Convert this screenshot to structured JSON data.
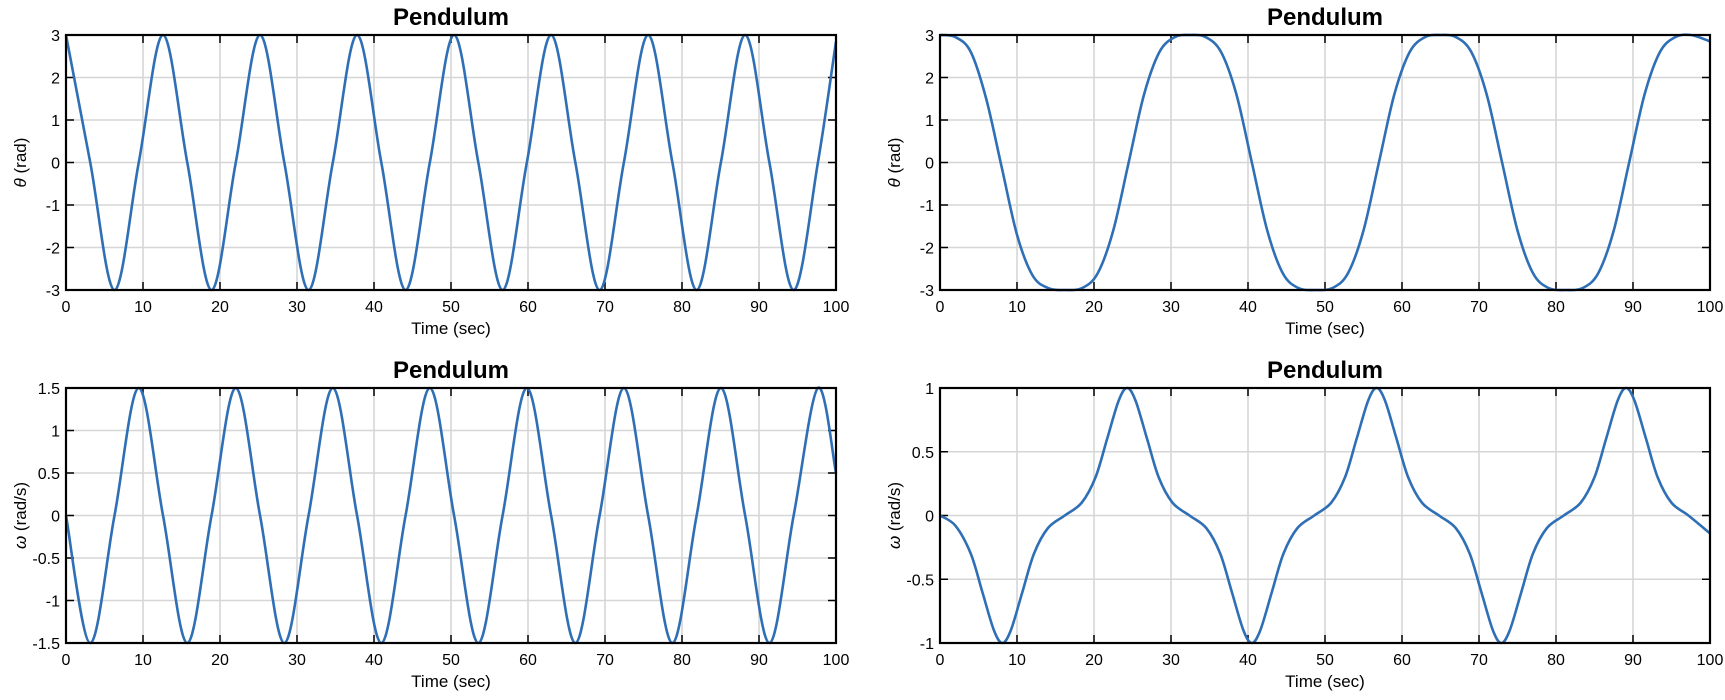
{
  "colors": {
    "series": "#2f6fb5",
    "grid": "#d6d6d6",
    "axis": "#000000"
  },
  "chart_data": [
    {
      "type": "line",
      "title": "Pendulum",
      "xlabel": "Time (sec)",
      "ylabel_symbol": "θ",
      "ylabel_unit": " (rad)",
      "xlim": [
        0,
        100
      ],
      "ylim": [
        -3,
        3
      ],
      "xticks": [
        0,
        10,
        20,
        30,
        40,
        50,
        60,
        70,
        80,
        90,
        100
      ],
      "yticks": [
        3,
        2,
        1,
        0,
        -1,
        -2,
        -3
      ],
      "yticklabels": [
        "3",
        "2",
        "1",
        "0",
        "-1",
        "-2",
        "-3"
      ],
      "grid": true,
      "series": [
        {
          "x": [
            0,
            3.15,
            6.3,
            9.45,
            12.6,
            15.75,
            18.9,
            22.05,
            25.2,
            28.35,
            31.5,
            34.65,
            37.8,
            40.95,
            44.1,
            47.25,
            50.4,
            53.55,
            56.7,
            59.85,
            63.0,
            66.15,
            69.3,
            72.45,
            75.6,
            78.75,
            81.9,
            85.05,
            88.2,
            91.35,
            94.5,
            97.65,
            100
          ],
          "y": [
            3,
            0,
            -3,
            0,
            3,
            0,
            -3,
            0,
            3,
            0,
            -3,
            0,
            3,
            0,
            -3,
            0,
            3,
            0,
            -3,
            0,
            3,
            0,
            -3,
            0,
            3,
            0,
            -3,
            0,
            3,
            0,
            -3,
            0,
            2.85
          ]
        }
      ]
    },
    {
      "type": "line",
      "title": "Pendulum",
      "xlabel": "Time (sec)",
      "ylabel_symbol": "θ",
      "ylabel_unit": " (rad)",
      "xlim": [
        0,
        100
      ],
      "ylim": [
        -3,
        3
      ],
      "xticks": [
        0,
        10,
        20,
        30,
        40,
        50,
        60,
        70,
        80,
        90,
        100
      ],
      "yticks": [
        3,
        2,
        1,
        0,
        -1,
        -2,
        -3
      ],
      "yticklabels": [
        "3",
        "2",
        "1",
        "0",
        "-1",
        "-2",
        "-3"
      ],
      "grid": true,
      "series": [
        {
          "x": [
            0,
            2,
            4,
            6,
            8,
            10,
            12,
            14,
            16.25,
            18.5,
            20.5,
            22.5,
            24.5,
            26.5,
            28.5,
            30.5,
            32.5,
            34.5,
            36.5,
            38.5,
            40.5,
            42.5,
            44.5,
            46.5,
            48.75,
            51,
            53,
            55,
            57,
            59,
            61,
            63,
            65,
            67,
            69,
            71,
            73,
            75,
            77,
            79,
            81.25,
            83.5,
            85.5,
            87.5,
            89.5,
            91.5,
            93.5,
            95.5,
            97.5,
            100
          ],
          "y": [
            3,
            2.95,
            2.6,
            1.5,
            -0.1,
            -1.7,
            -2.65,
            -2.95,
            -3,
            -2.95,
            -2.6,
            -1.6,
            0,
            1.6,
            2.6,
            2.95,
            3,
            2.95,
            2.6,
            1.6,
            0,
            -1.6,
            -2.6,
            -2.95,
            -3,
            -2.95,
            -2.6,
            -1.6,
            0,
            1.6,
            2.6,
            2.95,
            3,
            2.95,
            2.6,
            1.6,
            0,
            -1.6,
            -2.6,
            -2.95,
            -3,
            -2.95,
            -2.6,
            -1.6,
            0,
            1.6,
            2.6,
            2.95,
            3,
            2.85
          ]
        }
      ]
    },
    {
      "type": "line",
      "title": "Pendulum",
      "xlabel": "Time (sec)",
      "ylabel_symbol": "ω",
      "ylabel_unit": " (rad/s)",
      "xlim": [
        0,
        100
      ],
      "ylim": [
        -1.5,
        1.5
      ],
      "xticks": [
        0,
        10,
        20,
        30,
        40,
        50,
        60,
        70,
        80,
        90,
        100
      ],
      "yticks": [
        1.5,
        1,
        0.5,
        0,
        -0.5,
        -1,
        -1.5
      ],
      "yticklabels": [
        "1.5",
        "1",
        "0.5",
        "0",
        "-0.5",
        "-1",
        "-1.5"
      ],
      "grid": true,
      "series": [
        {
          "x": [
            0,
            3.15,
            6.3,
            9.45,
            12.6,
            15.75,
            18.9,
            22.05,
            25.2,
            28.35,
            31.5,
            34.65,
            37.8,
            40.95,
            44.1,
            47.25,
            50.4,
            53.55,
            56.7,
            59.85,
            63.0,
            66.15,
            69.3,
            72.45,
            75.6,
            78.75,
            81.9,
            85.05,
            88.2,
            91.35,
            94.5,
            97.65,
            100
          ],
          "y": [
            0,
            -1.5,
            0,
            1.5,
            0,
            -1.5,
            0,
            1.5,
            0,
            -1.5,
            0,
            1.5,
            0,
            -1.5,
            0,
            1.5,
            0,
            -1.5,
            0,
            1.5,
            0,
            -1.5,
            0,
            1.5,
            0,
            -1.5,
            0,
            1.5,
            0,
            -1.5,
            0,
            1.5,
            0.5
          ]
        }
      ]
    },
    {
      "type": "line",
      "title": "Pendulum",
      "xlabel": "Time (sec)",
      "ylabel_symbol": "ω",
      "ylabel_unit": " (rad/s)",
      "xlim": [
        0,
        100
      ],
      "ylim": [
        -1,
        1
      ],
      "xticks": [
        0,
        10,
        20,
        30,
        40,
        50,
        60,
        70,
        80,
        90,
        100
      ],
      "yticks": [
        1,
        0.5,
        0,
        -0.5,
        -1
      ],
      "yticklabels": [
        "1",
        "0.5",
        "0",
        "-0.5",
        "-1"
      ],
      "grid": true,
      "series": [
        {
          "x": [
            0,
            2,
            4,
            5.5,
            7,
            8.1,
            9.2,
            10.7,
            12.2,
            14,
            16.2,
            18.4,
            20.2,
            21.7,
            23.2,
            24.3,
            25.4,
            26.9,
            28.4,
            30.2,
            32.4,
            34.6,
            36.4,
            37.9,
            39.4,
            40.5,
            41.6,
            43.1,
            44.6,
            46.4,
            48.6,
            50.8,
            52.6,
            54.1,
            55.6,
            56.7,
            57.8,
            59.3,
            60.8,
            62.6,
            64.8,
            67,
            68.8,
            70.3,
            71.8,
            72.9,
            74,
            75.5,
            77,
            78.8,
            81,
            83.2,
            85,
            86.5,
            88,
            89.1,
            90.2,
            91.7,
            93.2,
            95,
            97.2,
            100
          ],
          "y": [
            0,
            -0.08,
            -0.3,
            -0.6,
            -0.9,
            -1,
            -0.9,
            -0.6,
            -0.3,
            -0.1,
            0,
            0.1,
            0.3,
            0.6,
            0.9,
            1,
            0.9,
            0.6,
            0.3,
            0.1,
            0,
            -0.1,
            -0.3,
            -0.6,
            -0.9,
            -1,
            -0.9,
            -0.6,
            -0.3,
            -0.1,
            0,
            0.1,
            0.3,
            0.6,
            0.9,
            1,
            0.9,
            0.6,
            0.3,
            0.1,
            0,
            -0.1,
            -0.3,
            -0.6,
            -0.9,
            -1,
            -0.9,
            -0.6,
            -0.3,
            -0.1,
            0,
            0.1,
            0.3,
            0.6,
            0.9,
            1,
            0.9,
            0.6,
            0.3,
            0.1,
            0,
            -0.14
          ]
        }
      ]
    }
  ]
}
